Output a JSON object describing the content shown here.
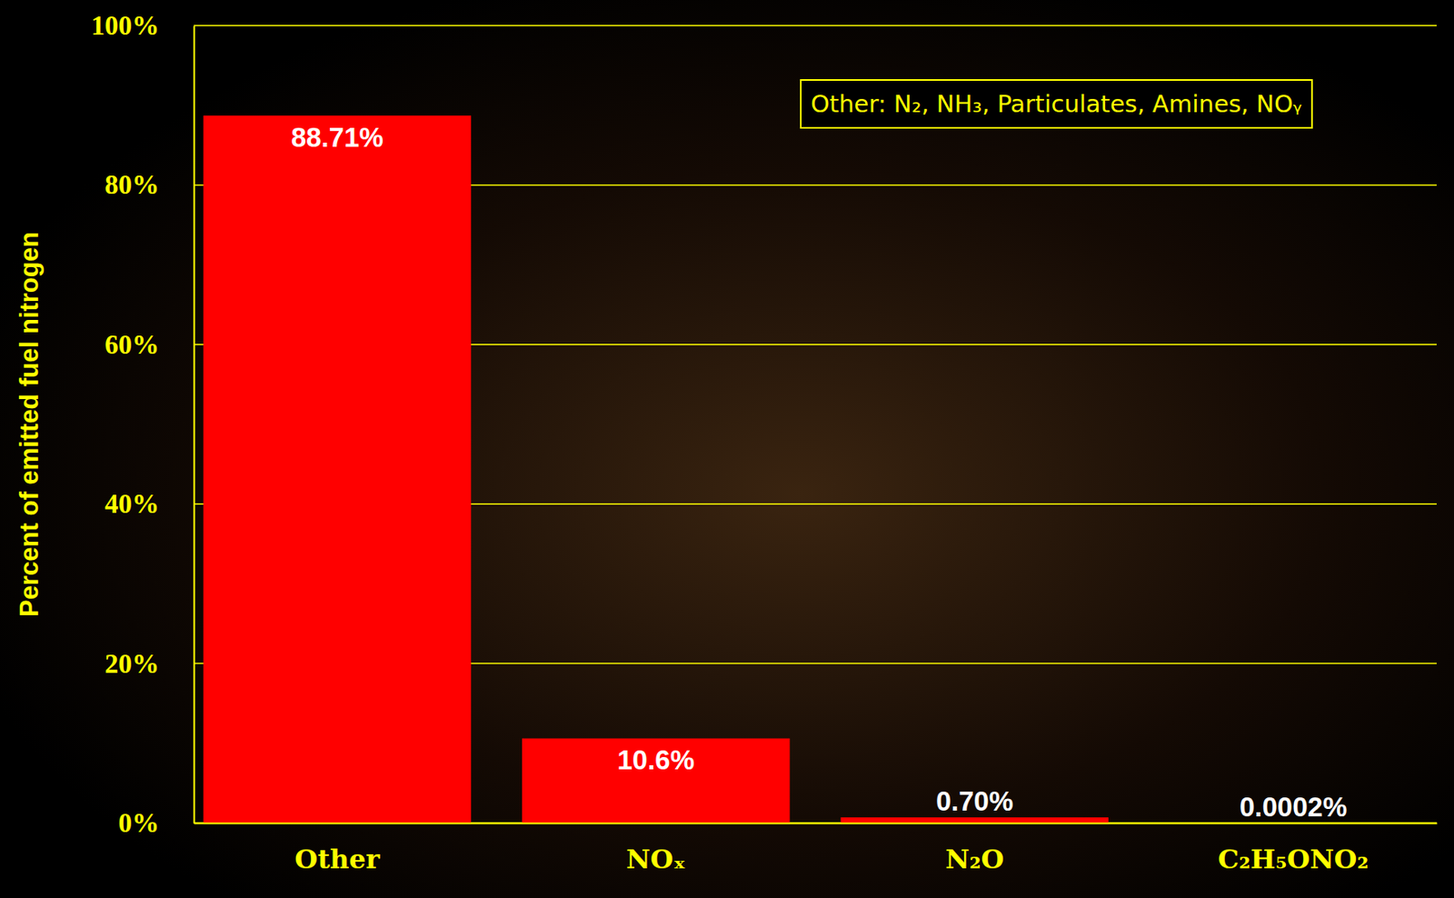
{
  "chart_data": {
    "type": "bar",
    "y_label": "Percent of emitted fuel nitrogen",
    "annotation": "Other: N₂, NH₃, Particulates, Amines, NOᵧ",
    "categories": [
      "Other",
      "NOₓ",
      "N₂O",
      "C₂H₅ONO₂"
    ],
    "values": [
      88.71,
      10.6,
      0.7,
      0.0002
    ],
    "value_labels": [
      "88.71%",
      "10.6%",
      "0.70%",
      "0.0002%"
    ],
    "color": "#ff0000",
    "ylim": [
      0,
      100
    ],
    "yticks": [
      {
        "value": 0,
        "label": "0%"
      },
      {
        "value": 20,
        "label": "20%"
      },
      {
        "value": 40,
        "label": "40%"
      },
      {
        "value": 60,
        "label": "60%"
      },
      {
        "value": 80,
        "label": "80%"
      },
      {
        "value": 100,
        "label": "100%"
      }
    ],
    "grid": true,
    "data_labels": true
  }
}
